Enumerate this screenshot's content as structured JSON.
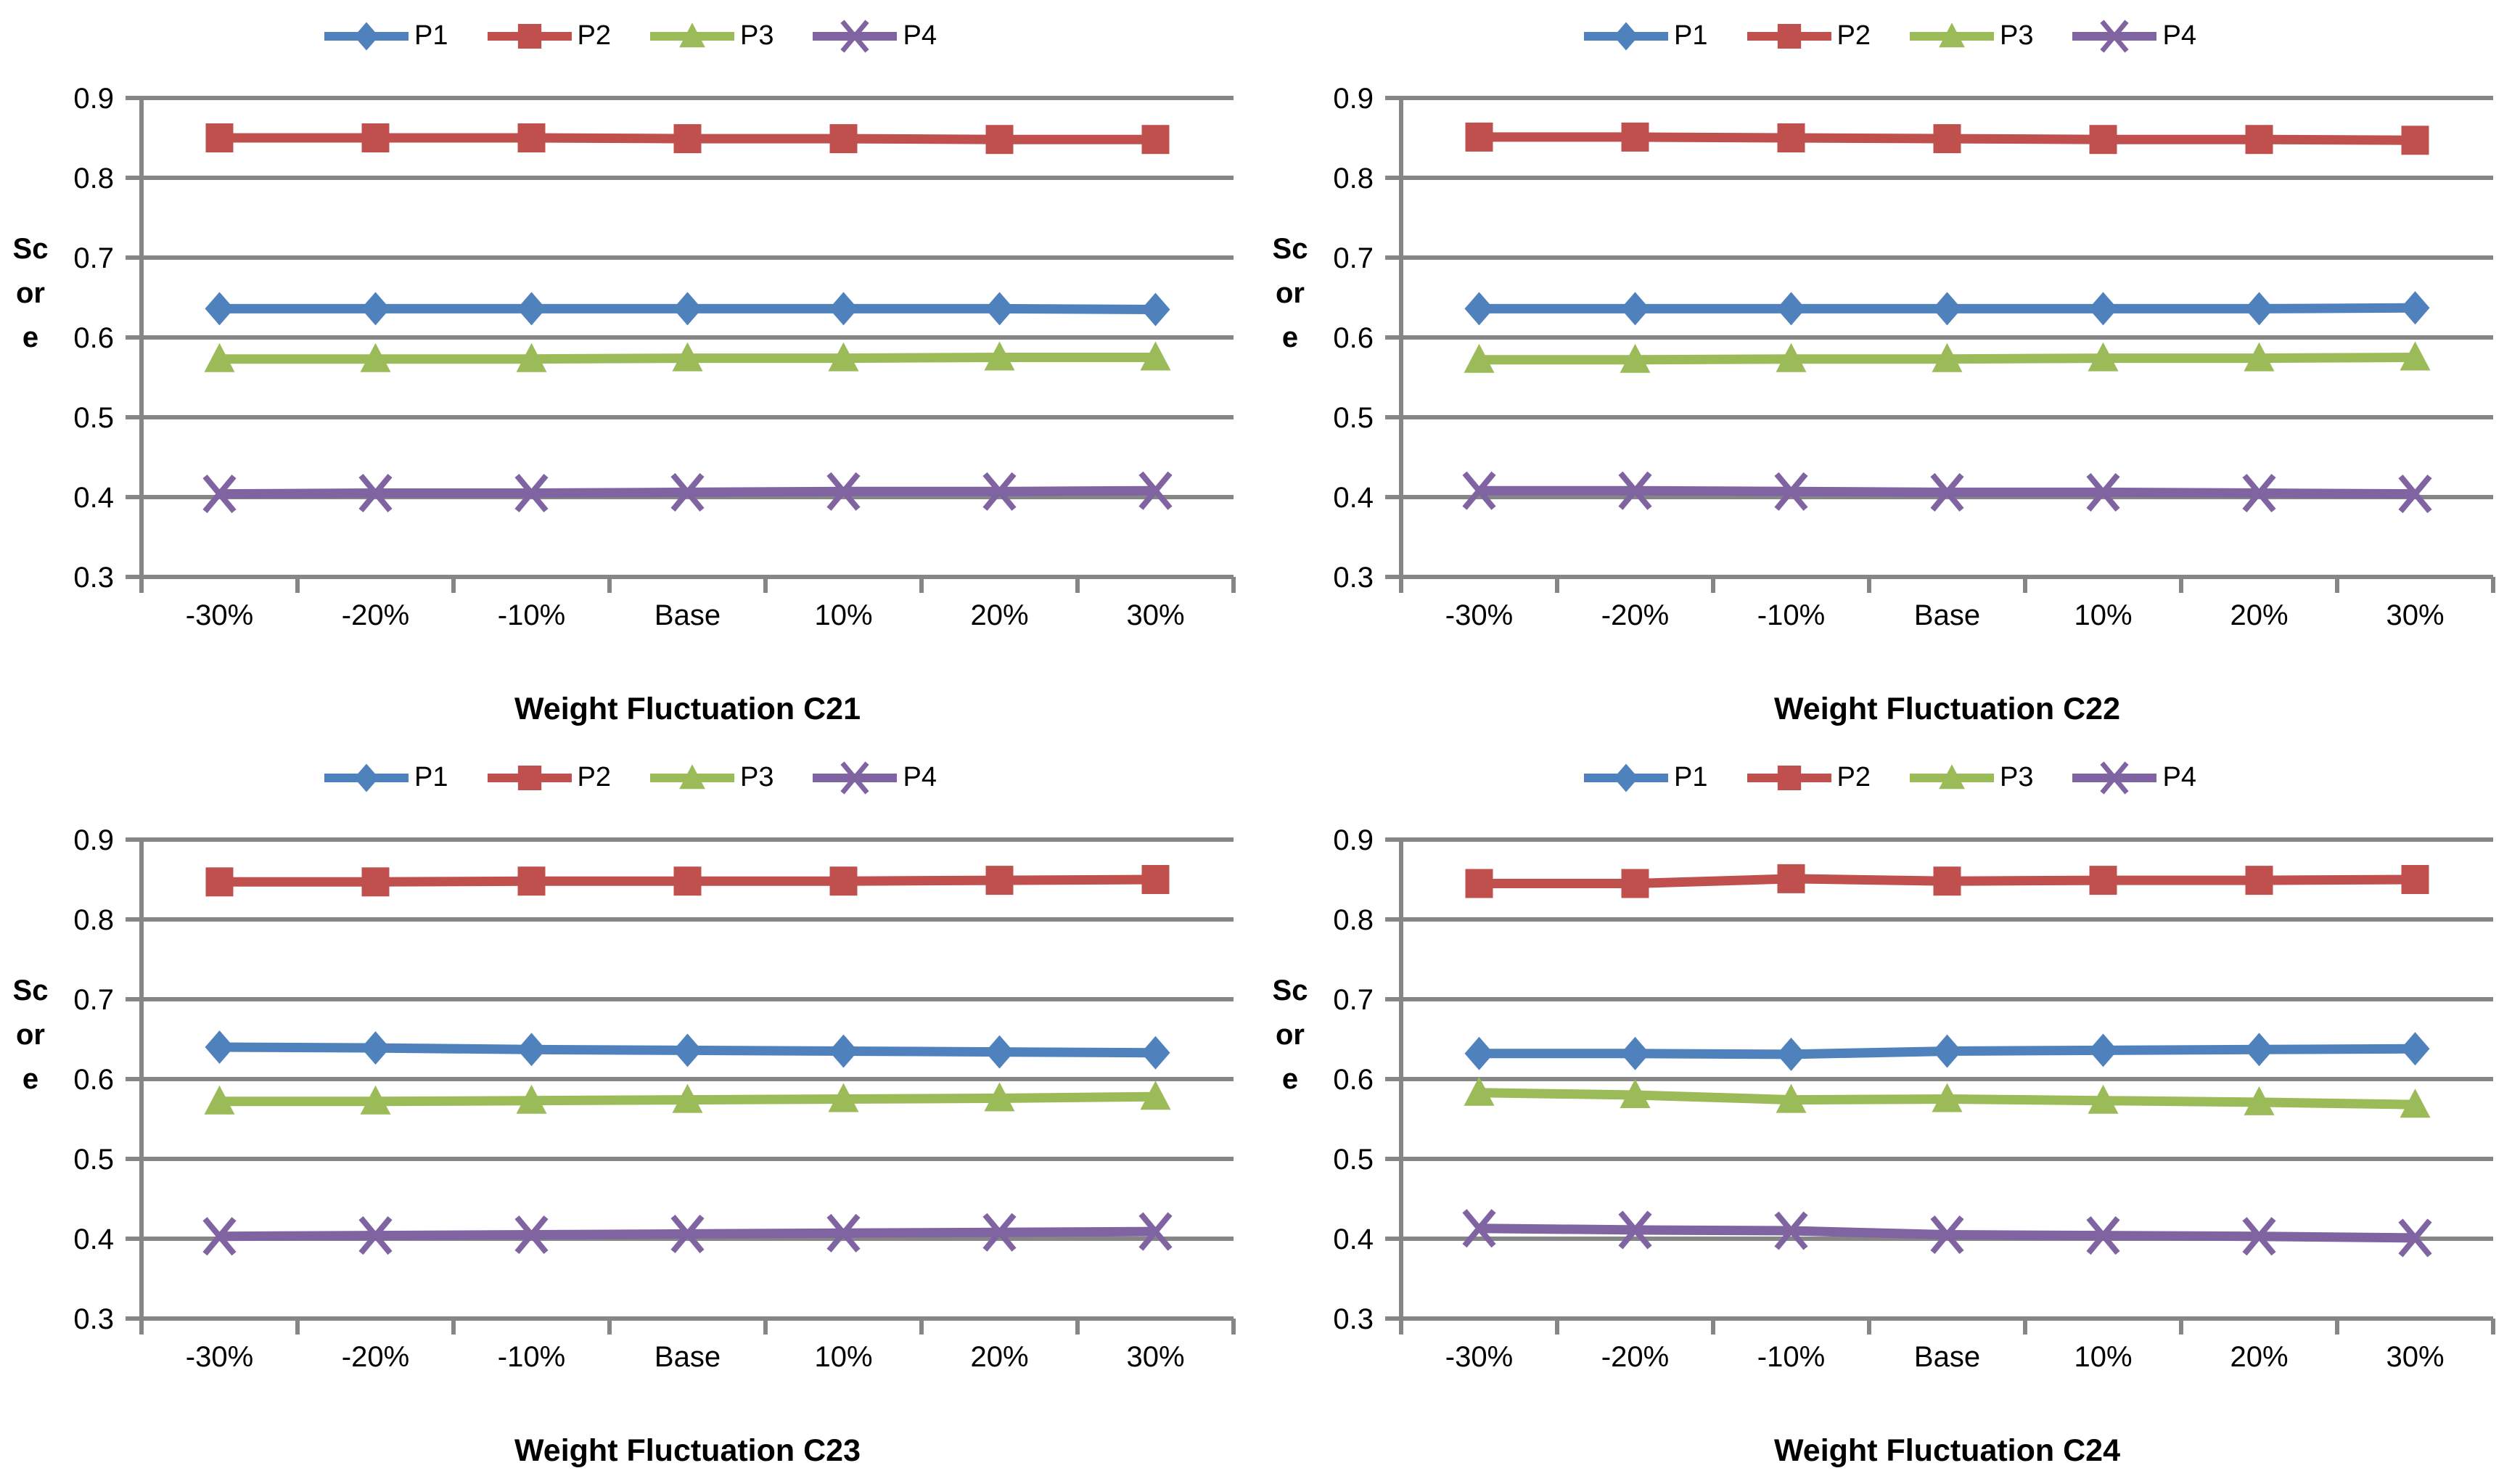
{
  "page": {
    "background": "#ffffff",
    "grid_layout": "2x2"
  },
  "legend": {
    "position": "top-center",
    "entries": [
      {
        "id": "P1",
        "label": "P1",
        "color": "#4F81BD",
        "marker": "diamond"
      },
      {
        "id": "P2",
        "label": "P2",
        "color": "#C0504D",
        "marker": "square"
      },
      {
        "id": "P3",
        "label": "P3",
        "color": "#9BBB59",
        "marker": "triangle"
      },
      {
        "id": "P4",
        "label": "P4",
        "color": "#8064A2",
        "marker": "x"
      }
    ]
  },
  "axis_style": {
    "gridline_color": "#868686",
    "axis_color": "#868686",
    "grid_on": true,
    "yticks": [
      "0.3",
      "0.4",
      "0.5",
      "0.6",
      "0.7",
      "0.8",
      "0.9"
    ]
  },
  "chart_data": [
    {
      "type": "line",
      "xlabel": "Weight Fluctuation C21",
      "ylabel": "Score",
      "categories": [
        "-30%",
        "-20%",
        "-10%",
        "Base",
        "10%",
        "20%",
        "30%"
      ],
      "ylim": [
        0.3,
        0.9
      ],
      "ytick_step": 0.1,
      "legend_position": "top",
      "series": [
        {
          "name": "P1",
          "color": "#4F81BD",
          "marker": "diamond",
          "values": [
            0.636,
            0.636,
            0.636,
            0.636,
            0.636,
            0.636,
            0.635
          ]
        },
        {
          "name": "P2",
          "color": "#C0504D",
          "marker": "square",
          "values": [
            0.85,
            0.85,
            0.85,
            0.849,
            0.849,
            0.848,
            0.848
          ]
        },
        {
          "name": "P3",
          "color": "#9BBB59",
          "marker": "triangle",
          "values": [
            0.573,
            0.573,
            0.573,
            0.574,
            0.574,
            0.575,
            0.575
          ]
        },
        {
          "name": "P4",
          "color": "#8064A2",
          "marker": "x",
          "values": [
            0.404,
            0.405,
            0.405,
            0.406,
            0.407,
            0.407,
            0.408
          ]
        }
      ]
    },
    {
      "type": "line",
      "xlabel": "Weight Fluctuation C22",
      "ylabel": "Score",
      "categories": [
        "-30%",
        "-20%",
        "-10%",
        "Base",
        "10%",
        "20%",
        "30%"
      ],
      "ylim": [
        0.3,
        0.9
      ],
      "ytick_step": 0.1,
      "legend_position": "top",
      "series": [
        {
          "name": "P1",
          "color": "#4F81BD",
          "marker": "diamond",
          "values": [
            0.636,
            0.636,
            0.636,
            0.636,
            0.636,
            0.636,
            0.637
          ]
        },
        {
          "name": "P2",
          "color": "#C0504D",
          "marker": "square",
          "values": [
            0.851,
            0.851,
            0.85,
            0.849,
            0.848,
            0.848,
            0.847
          ]
        },
        {
          "name": "P3",
          "color": "#9BBB59",
          "marker": "triangle",
          "values": [
            0.572,
            0.572,
            0.573,
            0.573,
            0.574,
            0.574,
            0.575
          ]
        },
        {
          "name": "P4",
          "color": "#8064A2",
          "marker": "x",
          "values": [
            0.408,
            0.408,
            0.407,
            0.406,
            0.406,
            0.405,
            0.404
          ]
        }
      ]
    },
    {
      "type": "line",
      "xlabel": "Weight Fluctuation C23",
      "ylabel": "Score",
      "categories": [
        "-30%",
        "-20%",
        "-10%",
        "Base",
        "10%",
        "20%",
        "30%"
      ],
      "ylim": [
        0.3,
        0.9
      ],
      "ytick_step": 0.1,
      "legend_position": "top",
      "series": [
        {
          "name": "P1",
          "color": "#4F81BD",
          "marker": "diamond",
          "values": [
            0.64,
            0.639,
            0.637,
            0.636,
            0.635,
            0.634,
            0.633
          ]
        },
        {
          "name": "P2",
          "color": "#C0504D",
          "marker": "square",
          "values": [
            0.847,
            0.847,
            0.848,
            0.848,
            0.848,
            0.849,
            0.85
          ]
        },
        {
          "name": "P3",
          "color": "#9BBB59",
          "marker": "triangle",
          "values": [
            0.572,
            0.572,
            0.573,
            0.574,
            0.575,
            0.576,
            0.578
          ]
        },
        {
          "name": "P4",
          "color": "#8064A2",
          "marker": "x",
          "values": [
            0.403,
            0.404,
            0.405,
            0.406,
            0.407,
            0.408,
            0.409
          ]
        }
      ]
    },
    {
      "type": "line",
      "xlabel": "Weight Fluctuation C24",
      "ylabel": "Score",
      "categories": [
        "-30%",
        "-20%",
        "-10%",
        "Base",
        "10%",
        "20%",
        "30%"
      ],
      "ylim": [
        0.3,
        0.9
      ],
      "ytick_step": 0.1,
      "legend_position": "top",
      "series": [
        {
          "name": "P1",
          "color": "#4F81BD",
          "marker": "diamond",
          "values": [
            0.632,
            0.632,
            0.631,
            0.635,
            0.636,
            0.637,
            0.638
          ]
        },
        {
          "name": "P2",
          "color": "#C0504D",
          "marker": "square",
          "values": [
            0.845,
            0.845,
            0.851,
            0.848,
            0.849,
            0.849,
            0.85
          ]
        },
        {
          "name": "P3",
          "color": "#9BBB59",
          "marker": "triangle",
          "values": [
            0.583,
            0.58,
            0.574,
            0.575,
            0.573,
            0.571,
            0.568
          ]
        },
        {
          "name": "P4",
          "color": "#8064A2",
          "marker": "x",
          "values": [
            0.413,
            0.411,
            0.41,
            0.405,
            0.404,
            0.403,
            0.401
          ]
        }
      ]
    }
  ]
}
